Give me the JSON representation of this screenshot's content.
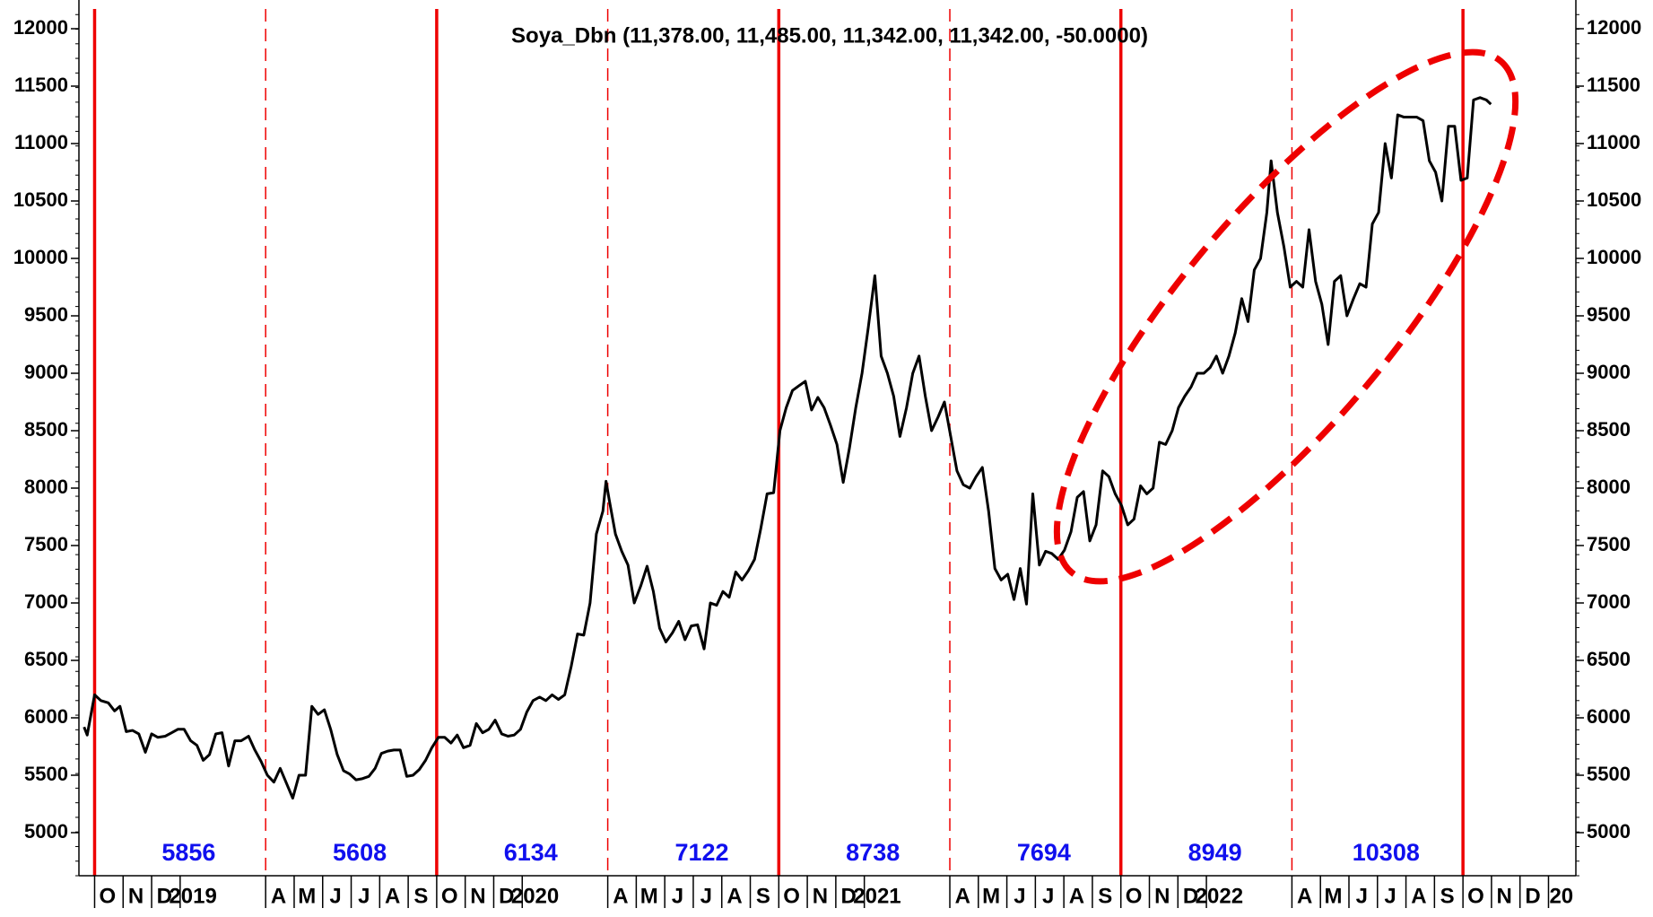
{
  "chart_data": {
    "type": "line",
    "title": "Soya_Dbn (11,378.00, 11,485.00, 11,342.00, 11,342.00, -50.0000)",
    "color": "#000000",
    "xlim": [
      -0.55,
      51.96
    ],
    "ylim": [
      4625,
      12250
    ],
    "yticks": [
      5000,
      5500,
      6000,
      6500,
      7000,
      7500,
      8000,
      8500,
      9000,
      9500,
      10000,
      10500,
      11000,
      11500,
      12000
    ],
    "xticks": [
      {
        "value": 0,
        "label": "O"
      },
      {
        "value": 1,
        "label": "N"
      },
      {
        "value": 2,
        "label": "D"
      },
      {
        "value": 3,
        "label": "2019"
      },
      {
        "value": 6,
        "label": "A"
      },
      {
        "value": 7,
        "label": "M"
      },
      {
        "value": 8,
        "label": "J"
      },
      {
        "value": 9,
        "label": "J"
      },
      {
        "value": 10,
        "label": "A"
      },
      {
        "value": 11,
        "label": "S"
      },
      {
        "value": 12,
        "label": "O"
      },
      {
        "value": 13,
        "label": "N"
      },
      {
        "value": 14,
        "label": "D"
      },
      {
        "value": 15,
        "label": "2020"
      },
      {
        "value": 18,
        "label": "A"
      },
      {
        "value": 19,
        "label": "M"
      },
      {
        "value": 20,
        "label": "J"
      },
      {
        "value": 21,
        "label": "J"
      },
      {
        "value": 22,
        "label": "A"
      },
      {
        "value": 23,
        "label": "S"
      },
      {
        "value": 24,
        "label": "O"
      },
      {
        "value": 25,
        "label": "N"
      },
      {
        "value": 26,
        "label": "D"
      },
      {
        "value": 27,
        "label": "2021"
      },
      {
        "value": 30,
        "label": "A"
      },
      {
        "value": 31,
        "label": "M"
      },
      {
        "value": 32,
        "label": "J"
      },
      {
        "value": 33,
        "label": "J"
      },
      {
        "value": 34,
        "label": "A"
      },
      {
        "value": 35,
        "label": "S"
      },
      {
        "value": 36,
        "label": "O"
      },
      {
        "value": 37,
        "label": "N"
      },
      {
        "value": 38,
        "label": "D"
      },
      {
        "value": 39,
        "label": "2022"
      },
      {
        "value": 42,
        "label": "A"
      },
      {
        "value": 43,
        "label": "M"
      },
      {
        "value": 44,
        "label": "J"
      },
      {
        "value": 45,
        "label": "J"
      },
      {
        "value": 46,
        "label": "A"
      },
      {
        "value": 47,
        "label": "S"
      },
      {
        "value": 48,
        "label": "O"
      },
      {
        "value": 49,
        "label": "N"
      },
      {
        "value": 50,
        "label": "D"
      },
      {
        "value": 51,
        "label": "20"
      }
    ],
    "period_lines": {
      "solid": [
        0,
        12,
        24,
        36,
        48
      ],
      "dashed": [
        6,
        18,
        30,
        42
      ]
    },
    "period_averages": [
      5856,
      5608,
      6134,
      7122,
      8738,
      7694,
      8949,
      10308
    ],
    "x": [
      -0.37,
      -0.26,
      0,
      0.22,
      0.48,
      0.7,
      0.89,
      1.11,
      1.33,
      1.55,
      1.78,
      2.0,
      2.22,
      2.48,
      2.7,
      2.92,
      3.14,
      3.37,
      3.59,
      3.81,
      4.03,
      4.25,
      4.47,
      4.7,
      4.92,
      5.14,
      5.4,
      5.62,
      5.84,
      6.06,
      6.29,
      6.51,
      6.73,
      6.95,
      7.17,
      7.4,
      7.62,
      7.84,
      8.06,
      8.28,
      8.51,
      8.73,
      8.95,
      9.17,
      9.39,
      9.62,
      9.84,
      10.06,
      10.28,
      10.5,
      10.72,
      10.95,
      11.17,
      11.39,
      11.61,
      11.83,
      12.06,
      12.28,
      12.5,
      12.72,
      12.94,
      13.17,
      13.39,
      13.61,
      13.83,
      14.05,
      14.28,
      14.5,
      14.72,
      14.94,
      15.16,
      15.38,
      15.61,
      15.83,
      16.05,
      16.27,
      16.49,
      16.72,
      16.94,
      17.16,
      17.38,
      17.6,
      17.83,
      17.94,
      18.05,
      18.27,
      18.49,
      18.71,
      18.93,
      19.16,
      19.38,
      19.6,
      19.82,
      20.04,
      20.27,
      20.49,
      20.71,
      20.93,
      21.15,
      21.38,
      21.6,
      21.82,
      22.04,
      22.26,
      22.49,
      22.71,
      22.93,
      23.15,
      23.37,
      23.59,
      23.82,
      24.04,
      24.26,
      24.48,
      24.7,
      24.93,
      25.15,
      25.37,
      25.59,
      25.81,
      26.04,
      26.26,
      26.48,
      26.7,
      26.92,
      27.14,
      27.37,
      27.59,
      27.81,
      28.03,
      28.25,
      28.48,
      28.7,
      28.92,
      29.14,
      29.36,
      29.59,
      29.81,
      30.03,
      30.25,
      30.47,
      30.7,
      30.92,
      31.14,
      31.36,
      31.58,
      31.8,
      32.03,
      32.25,
      32.47,
      32.69,
      32.91,
      33.14,
      33.36,
      33.58,
      33.8,
      34.02,
      34.25,
      34.47,
      34.69,
      34.91,
      35.13,
      35.36,
      35.58,
      35.8,
      36.02,
      36.24,
      36.46,
      36.69,
      36.91,
      37.13,
      37.35,
      37.57,
      37.8,
      38.02,
      38.24,
      38.46,
      38.68,
      38.91,
      39.13,
      39.35,
      39.57,
      39.79,
      40.01,
      40.24,
      40.46,
      40.68,
      40.9,
      41.12,
      41.27,
      41.49,
      41.72,
      41.94,
      42.16,
      42.38,
      42.6,
      42.83,
      43.05,
      43.27,
      43.49,
      43.71,
      43.93,
      44.16,
      44.38,
      44.6,
      44.82,
      45.04,
      45.27,
      45.49,
      45.71,
      45.93,
      46.15,
      46.38,
      46.6,
      46.82,
      47.04,
      47.26,
      47.49,
      47.71,
      47.93,
      48.15,
      48.37,
      48.6,
      48.82,
      48.98
    ],
    "values": [
      5920,
      5850,
      6200,
      6150,
      6130,
      6060,
      6100,
      5880,
      5890,
      5860,
      5700,
      5860,
      5830,
      5840,
      5870,
      5900,
      5900,
      5800,
      5760,
      5630,
      5680,
      5860,
      5870,
      5580,
      5800,
      5800,
      5840,
      5720,
      5620,
      5500,
      5440,
      5560,
      5430,
      5300,
      5500,
      5500,
      6100,
      6030,
      6070,
      5900,
      5680,
      5540,
      5510,
      5460,
      5470,
      5490,
      5560,
      5690,
      5710,
      5720,
      5720,
      5490,
      5500,
      5550,
      5630,
      5740,
      5830,
      5830,
      5780,
      5850,
      5740,
      5760,
      5950,
      5870,
      5900,
      5980,
      5860,
      5840,
      5850,
      5900,
      6050,
      6150,
      6180,
      6150,
      6200,
      6160,
      6200,
      6450,
      6730,
      6720,
      7000,
      7600,
      7800,
      8060,
      7900,
      7600,
      7450,
      7330,
      7000,
      7150,
      7320,
      7100,
      6780,
      6660,
      6740,
      6840,
      6680,
      6800,
      6810,
      6600,
      7000,
      6980,
      7100,
      7050,
      7270,
      7200,
      7280,
      7380,
      7650,
      7950,
      7960,
      8500,
      8700,
      8850,
      8890,
      8930,
      8680,
      8790,
      8700,
      8550,
      8380,
      8050,
      8350,
      8700,
      9000,
      9400,
      9850,
      9150,
      9000,
      8800,
      8450,
      8700,
      9000,
      9150,
      8800,
      8500,
      8620,
      8750,
      8450,
      8150,
      8030,
      8000,
      8100,
      8180,
      7800,
      7300,
      7200,
      7250,
      7030,
      7300,
      6990,
      7950,
      7330,
      7450,
      7430,
      7380,
      7460,
      7620,
      7920,
      7970,
      7540,
      7680,
      8150,
      8100,
      7950,
      7850,
      7680,
      7730,
      8020,
      7950,
      8000,
      8400,
      8380,
      8500,
      8700,
      8800,
      8880,
      9000,
      9000,
      9050,
      9150,
      9000,
      9150,
      9350,
      9650,
      9450,
      9900,
      10000,
      10400,
      10850,
      10400,
      10100,
      9750,
      9800,
      9750,
      10250,
      9800,
      9600,
      9250,
      9800,
      9850,
      9500,
      9650,
      9780,
      9750,
      10300,
      10400,
      11000,
      10700,
      11250,
      11230,
      11230,
      11230,
      11200,
      10850,
      10750,
      10500,
      11150,
      11150,
      10680,
      10700,
      11380,
      11400,
      11380,
      11342
    ]
  }
}
